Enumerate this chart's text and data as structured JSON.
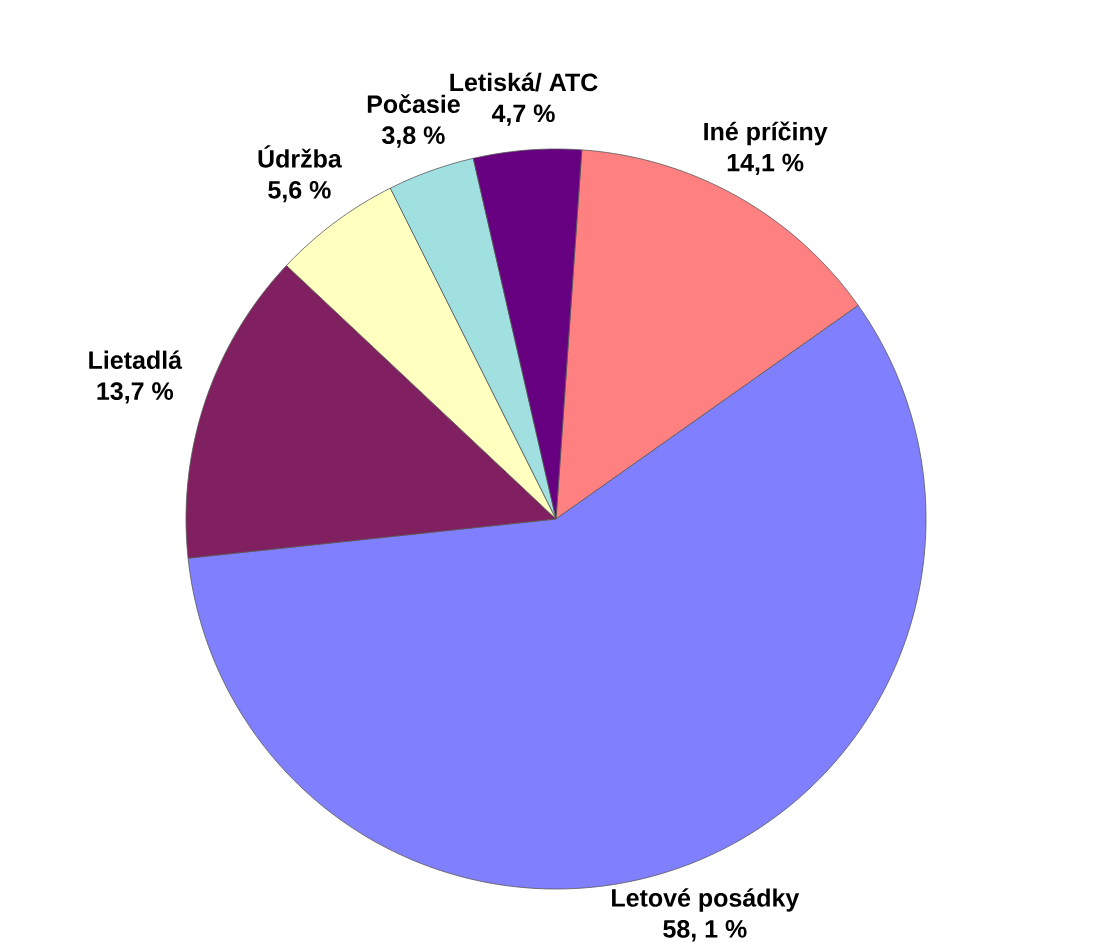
{
  "chart_data": {
    "type": "pie",
    "categories": [
      "Iné príčiny",
      "Letové posádky",
      "Lietadlá",
      "Údržba",
      "Počasie",
      "Letiská/ ATC"
    ],
    "values": [
      14.1,
      58.1,
      13.7,
      5.6,
      3.8,
      4.7
    ],
    "value_labels": [
      "14,1 %",
      "58, 1 %",
      "13,7 %",
      "5,6 %",
      "3,8 %",
      "4,7 %"
    ],
    "colors": [
      "#ff8080",
      "#8080ff",
      "#802060",
      "#ffffc0",
      "#a0e0e0",
      "#660080"
    ]
  }
}
